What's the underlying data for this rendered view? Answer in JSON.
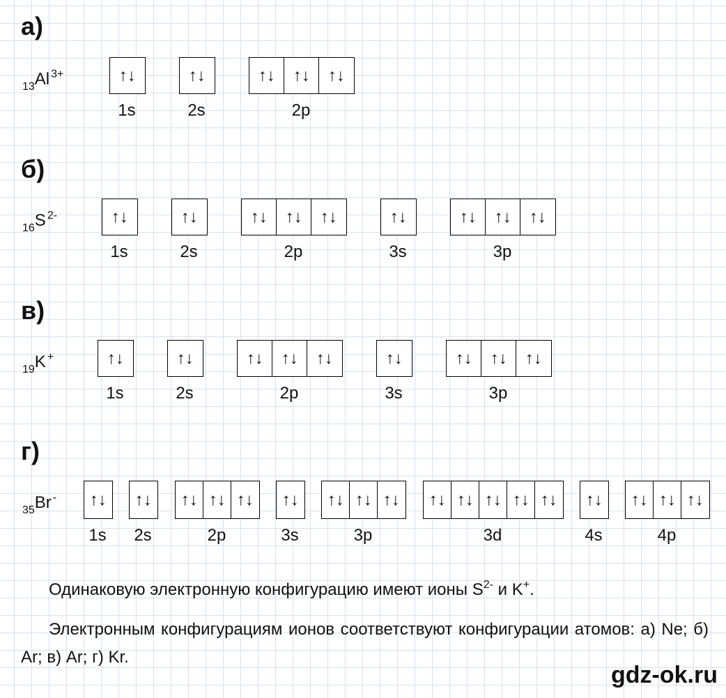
{
  "sections": [
    {
      "label": "а)",
      "ion": {
        "number": "13",
        "symbol": "Al",
        "charge": "3+"
      },
      "orbitals": [
        {
          "name": "1s",
          "cells": [
            "↑↓"
          ]
        },
        {
          "name": "2s",
          "cells": [
            "↑↓"
          ]
        },
        {
          "name": "2p",
          "cells": [
            "↑↓",
            "↑↓",
            "↑↓"
          ]
        }
      ]
    },
    {
      "label": "б)",
      "ion": {
        "number": "16",
        "symbol": "S",
        "charge": "2-"
      },
      "orbitals": [
        {
          "name": "1s",
          "cells": [
            "↑↓"
          ]
        },
        {
          "name": "2s",
          "cells": [
            "↑↓"
          ]
        },
        {
          "name": "2p",
          "cells": [
            "↑↓",
            "↑↓",
            "↑↓"
          ]
        },
        {
          "name": "3s",
          "cells": [
            "↑↓"
          ]
        },
        {
          "name": "3p",
          "cells": [
            "↑↓",
            "↑↓",
            "↑↓"
          ]
        }
      ]
    },
    {
      "label": "в)",
      "ion": {
        "number": "19",
        "symbol": "K",
        "charge": "+"
      },
      "orbitals": [
        {
          "name": "1s",
          "cells": [
            "↑↓"
          ]
        },
        {
          "name": "2s",
          "cells": [
            "↑↓"
          ]
        },
        {
          "name": "2p",
          "cells": [
            "↑↓",
            "↑↓",
            "↑↓"
          ]
        },
        {
          "name": "3s",
          "cells": [
            "↑↓"
          ]
        },
        {
          "name": "3p",
          "cells": [
            "↑↓",
            "↑↓",
            "↑↓"
          ]
        }
      ]
    },
    {
      "label": "г)",
      "ion": {
        "number": "35",
        "symbol": "Br",
        "charge": "-"
      },
      "orbitals": [
        {
          "name": "1s",
          "cells": [
            "↑↓"
          ]
        },
        {
          "name": "2s",
          "cells": [
            "↑↓"
          ]
        },
        {
          "name": "2p",
          "cells": [
            "↑↓",
            "↑↓",
            "↑↓"
          ]
        },
        {
          "name": "3s",
          "cells": [
            "↑↓"
          ]
        },
        {
          "name": "3p",
          "cells": [
            "↑↓",
            "↑↓",
            "↑↓"
          ]
        },
        {
          "name": "3d",
          "cells": [
            "↑↓",
            "↑↓",
            "↑↓",
            "↑↓",
            "↑↓"
          ]
        },
        {
          "name": "4s",
          "cells": [
            "↑↓"
          ]
        },
        {
          "name": "4p",
          "cells": [
            "↑↓",
            "↑↓",
            "↑↓"
          ]
        }
      ]
    }
  ],
  "conclusion": {
    "before": "Одинаковую электронную конфигурацию имеют ионы S",
    "charge1": "2-",
    "middle": " и K",
    "charge2": "+",
    "end": "."
  },
  "answer": "Электронным конфигурациям ионов соответствуют конфигурации атомов: а) Ne; б) Ar; в) Ar; г) Kr.",
  "watermark": "gdz-ok.ru"
}
